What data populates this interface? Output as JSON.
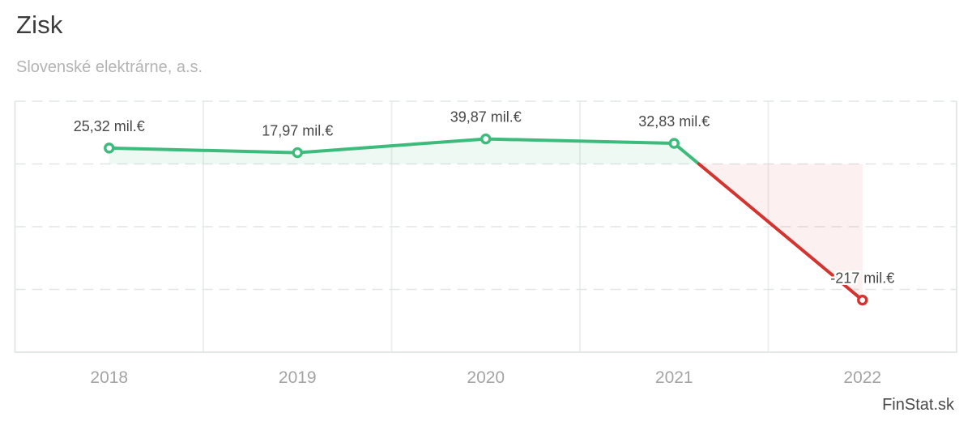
{
  "header": {
    "title": "Zisk",
    "subtitle": "Slovenské elektrárne, a.s."
  },
  "watermark": "FinStat.sk",
  "chart_data": {
    "type": "line",
    "title": "Zisk",
    "subtitle": "Slovenské elektrárne, a.s.",
    "categories": [
      "2018",
      "2019",
      "2020",
      "2021",
      "2022"
    ],
    "values": [
      25.32,
      17.97,
      39.87,
      32.83,
      -217
    ],
    "point_labels": [
      "25,32 mil.€",
      "17,97 mil.€",
      "39,87 mil.€",
      "32,83 mil.€",
      "-217 mil.€"
    ],
    "unit": "mil.€",
    "xlabel": "",
    "ylabel": "",
    "ylim": [
      -300,
      100
    ],
    "grid_step": 100,
    "grid": true,
    "legend": false,
    "area_fill_between_line_and_zero": true,
    "colors": {
      "positive": "#3dbb7d",
      "negative": "#d3342f",
      "area_pos": "rgba(61,187,125,0.09)",
      "area_neg": "rgba(211,52,47,0.07)",
      "grid_dash": "#e2e5e6",
      "grid_vert": "#ecefef",
      "border": "#e4e7e8",
      "marker_fill": "#ffffff",
      "label_text": "#474747",
      "axis_text": "#a4a4a4"
    }
  }
}
